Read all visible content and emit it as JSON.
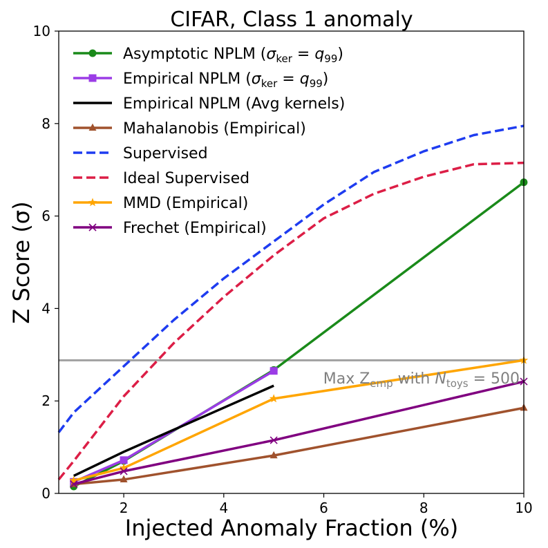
{
  "chart_data": {
    "type": "line",
    "title": "CIFAR, Class 1 anomaly",
    "xlabel": "Injected Anomaly Fraction (%)",
    "ylabel": "Z Score (σ)",
    "xlim": [
      0.7,
      10
    ],
    "ylim": [
      0,
      10
    ],
    "xticks": [
      2,
      4,
      6,
      8,
      10
    ],
    "yticks": [
      0,
      2,
      4,
      6,
      8,
      10
    ],
    "grid": false,
    "legend_position": "top-left",
    "hline": {
      "y": 2.88,
      "color": "#a0a0a0",
      "label": "Max Zemp with Ntoys = 500"
    },
    "series": [
      {
        "name": "Asymptotic NPLM (σker = q99)",
        "color": "#1a8a1a",
        "style": "solid",
        "marker": "circle",
        "x": [
          1,
          2,
          5,
          10
        ],
        "y": [
          0.15,
          0.7,
          2.67,
          6.73
        ]
      },
      {
        "name": "Empirical NPLM (σker = q99)",
        "color": "#9b3ce6",
        "style": "solid",
        "marker": "square",
        "x": [
          1,
          2,
          5
        ],
        "y": [
          0.25,
          0.72,
          2.65
        ]
      },
      {
        "name": "Empirical NPLM (Avg kernels)",
        "color": "#000000",
        "style": "solid",
        "marker": "none",
        "x": [
          1,
          2,
          5
        ],
        "y": [
          0.38,
          0.9,
          2.33
        ]
      },
      {
        "name": "Mahalanobis (Empirical)",
        "color": "#a0522d",
        "style": "solid",
        "marker": "triangle",
        "x": [
          1,
          2,
          5,
          10
        ],
        "y": [
          0.2,
          0.3,
          0.82,
          1.85
        ]
      },
      {
        "name": "Supervised",
        "color": "#1e3cf0",
        "style": "dashed",
        "marker": "none",
        "x": [
          0.7,
          1,
          2,
          3,
          4,
          5,
          6,
          7,
          8,
          9,
          10
        ],
        "y": [
          1.32,
          1.75,
          2.75,
          3.75,
          4.65,
          5.45,
          6.25,
          6.95,
          7.4,
          7.75,
          7.95
        ]
      },
      {
        "name": "Ideal Supervised",
        "color": "#dc1e46",
        "style": "dashed",
        "marker": "none",
        "x": [
          0.7,
          1,
          2,
          3,
          4,
          5,
          6,
          7,
          8,
          9,
          10
        ],
        "y": [
          0.3,
          0.7,
          2.1,
          3.25,
          4.25,
          5.15,
          5.95,
          6.48,
          6.85,
          7.12,
          7.15
        ]
      },
      {
        "name": "MMD (Empirical)",
        "color": "#ffa500",
        "style": "solid",
        "marker": "star",
        "x": [
          1,
          2,
          5,
          10
        ],
        "y": [
          0.28,
          0.55,
          2.05,
          2.88
        ]
      },
      {
        "name": "Frechet (Empirical)",
        "color": "#800080",
        "style": "solid",
        "marker": "x",
        "x": [
          1,
          2,
          5,
          10
        ],
        "y": [
          0.2,
          0.48,
          1.15,
          2.42
        ]
      }
    ]
  }
}
